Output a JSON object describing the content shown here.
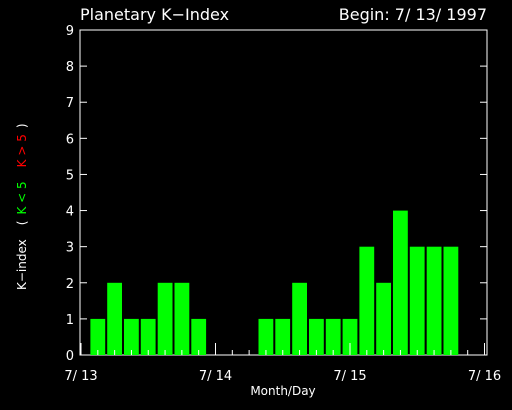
{
  "chart_data": {
    "type": "bar",
    "title": "Planetary K−Index",
    "subtitle": "Begin: 7/ 13/ 1997",
    "xlabel": "Month/Day",
    "ylabel": {
      "prefix": "K−index",
      "open_paren": "(",
      "green_part": "K < 5",
      "red_part": "K > 5",
      "close_paren": ")"
    },
    "ylim": [
      0,
      9
    ],
    "yticks": [
      "0",
      "1",
      "2",
      "3",
      "4",
      "5",
      "6",
      "7",
      "8",
      "9"
    ],
    "xlim": [
      0,
      3
    ],
    "xticks": [
      {
        "label": "7/ 13",
        "pos": 0
      },
      {
        "label": "7/ 14",
        "pos": 1
      },
      {
        "label": "7/ 15",
        "pos": 2
      },
      {
        "label": "7/ 16",
        "pos": 3
      }
    ],
    "bar_interval_days": 0.125,
    "values": [
      1,
      2,
      1,
      1,
      2,
      2,
      1,
      0,
      0,
      0,
      1,
      1,
      2,
      1,
      1,
      1,
      3,
      2,
      4,
      3,
      3,
      3
    ],
    "colors": {
      "low": "#00ff00",
      "high": "#ff0000",
      "axes": "#ffffff",
      "background": "#000000"
    },
    "threshold": 5,
    "grid": false,
    "legend": "none"
  }
}
